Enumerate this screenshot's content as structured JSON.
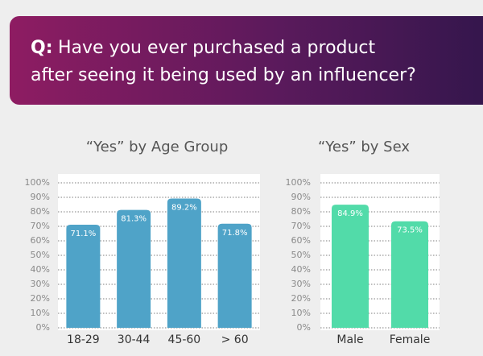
{
  "question": {
    "label": "Q:",
    "lines": [
      "Have you ever purchased a product",
      "after seeing it being used by an influencer?"
    ]
  },
  "chart_data": [
    {
      "type": "bar",
      "title": "“Yes” by Age Group",
      "categories": [
        "18-29",
        "30-44",
        "45-60",
        "> 60"
      ],
      "values": [
        71.1,
        81.3,
        89.2,
        71.8
      ],
      "value_labels": [
        "71.1%",
        "81.3%",
        "89.2%",
        "71.8%"
      ],
      "color": "#4fa3c8",
      "ylim": [
        0,
        100
      ],
      "yticks": [
        {
          "value": 0,
          "label": "0%"
        },
        {
          "value": 10,
          "label": "10%"
        },
        {
          "value": 20,
          "label": "20%"
        },
        {
          "value": 30,
          "label": "30%"
        },
        {
          "value": 40,
          "label": "40%"
        },
        {
          "value": 50,
          "label": "50%"
        },
        {
          "value": 60,
          "label": "60%"
        },
        {
          "value": 70,
          "label": "70%"
        },
        {
          "value": 80,
          "label": "80%"
        },
        {
          "value": 90,
          "label": "90%"
        },
        {
          "value": 100,
          "label": "100%"
        }
      ],
      "grid": true
    },
    {
      "type": "bar",
      "title": "“Yes” by Sex",
      "categories": [
        "Male",
        "Female"
      ],
      "values": [
        84.9,
        73.5
      ],
      "value_labels": [
        "84.9%",
        "73.5%"
      ],
      "color": "#52dba9",
      "ylim": [
        0,
        100
      ],
      "yticks": [
        {
          "value": 0,
          "label": "0%"
        },
        {
          "value": 10,
          "label": "10%"
        },
        {
          "value": 20,
          "label": "20%"
        },
        {
          "value": 30,
          "label": "30%"
        },
        {
          "value": 40,
          "label": "40%"
        },
        {
          "value": 50,
          "label": "50%"
        },
        {
          "value": 60,
          "label": "60%"
        },
        {
          "value": 70,
          "label": "70%"
        },
        {
          "value": 80,
          "label": "80%"
        },
        {
          "value": 90,
          "label": "90%"
        },
        {
          "value": 100,
          "label": "100%"
        }
      ],
      "grid": true
    }
  ]
}
